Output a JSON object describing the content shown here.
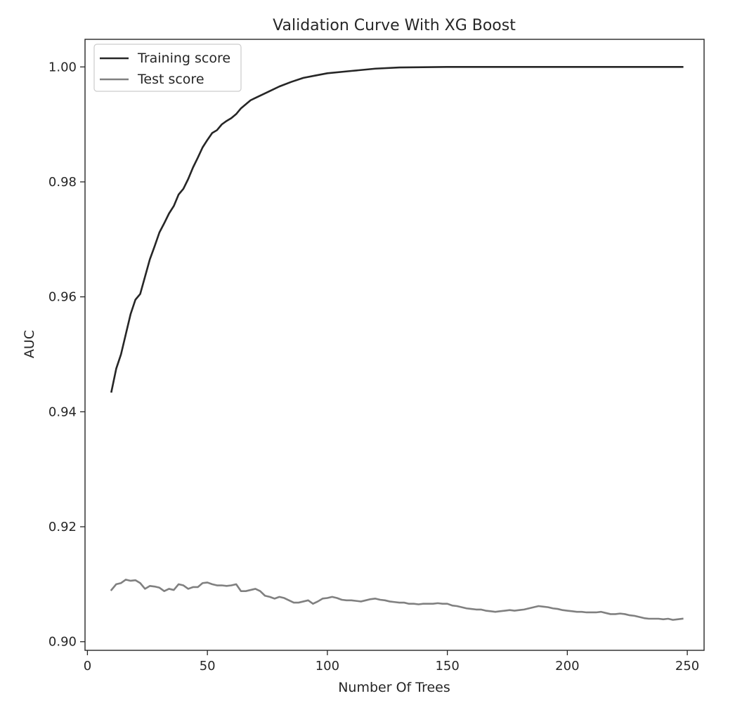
{
  "chart_data": {
    "type": "line",
    "title": "Validation Curve With XG Boost",
    "xlabel": "Number Of Trees",
    "ylabel": "AUC",
    "xlim": [
      -1,
      257
    ],
    "ylim": [
      0.8985,
      1.0048
    ],
    "xticks": [
      0,
      50,
      100,
      150,
      200,
      250
    ],
    "xtick_labels": [
      "0",
      "50",
      "100",
      "150",
      "200",
      "250"
    ],
    "yticks": [
      0.9,
      0.92,
      0.94,
      0.96,
      0.98,
      1.0
    ],
    "ytick_labels": [
      "0.90",
      "0.92",
      "0.94",
      "0.96",
      "0.98",
      "1.00"
    ],
    "grid": false,
    "legend_position": "top-left",
    "series": [
      {
        "name": "Training score",
        "color": "#262626",
        "x": [
          10,
          12,
          14,
          16,
          18,
          20,
          22,
          24,
          26,
          28,
          30,
          32,
          34,
          36,
          38,
          40,
          42,
          44,
          46,
          48,
          50,
          52,
          54,
          56,
          58,
          60,
          62,
          64,
          66,
          68,
          70,
          75,
          80,
          85,
          90,
          95,
          100,
          110,
          120,
          130,
          150,
          200,
          248
        ],
        "y": [
          0.9435,
          0.9475,
          0.95,
          0.9535,
          0.957,
          0.9595,
          0.9605,
          0.9635,
          0.9665,
          0.9688,
          0.9712,
          0.9728,
          0.9745,
          0.9758,
          0.9778,
          0.9788,
          0.9805,
          0.9825,
          0.9842,
          0.986,
          0.9873,
          0.9885,
          0.989,
          0.99,
          0.9906,
          0.9911,
          0.9918,
          0.9928,
          0.9935,
          0.9942,
          0.9946,
          0.9956,
          0.9966,
          0.9974,
          0.9981,
          0.9985,
          0.9989,
          0.9993,
          0.9997,
          0.9999,
          1.0,
          1.0,
          1.0
        ]
      },
      {
        "name": "Test score",
        "color": "#808080",
        "x": [
          10,
          12,
          14,
          16,
          18,
          20,
          22,
          24,
          26,
          28,
          30,
          32,
          34,
          36,
          38,
          40,
          42,
          44,
          46,
          48,
          50,
          52,
          54,
          56,
          58,
          60,
          62,
          64,
          66,
          68,
          70,
          72,
          74,
          76,
          78,
          80,
          82,
          84,
          86,
          88,
          90,
          92,
          94,
          96,
          98,
          100,
          102,
          104,
          106,
          108,
          110,
          112,
          114,
          116,
          118,
          120,
          122,
          124,
          126,
          128,
          130,
          132,
          134,
          136,
          138,
          140,
          142,
          144,
          146,
          148,
          150,
          152,
          154,
          156,
          158,
          160,
          162,
          164,
          166,
          168,
          170,
          172,
          174,
          176,
          178,
          180,
          182,
          184,
          186,
          188,
          190,
          192,
          194,
          196,
          198,
          200,
          202,
          204,
          206,
          208,
          210,
          212,
          214,
          216,
          218,
          220,
          222,
          224,
          226,
          228,
          230,
          232,
          234,
          236,
          238,
          240,
          242,
          244,
          246,
          248
        ],
        "y": [
          0.909,
          0.91,
          0.9102,
          0.9108,
          0.9106,
          0.9107,
          0.9102,
          0.9092,
          0.9097,
          0.9096,
          0.9094,
          0.9088,
          0.9092,
          0.909,
          0.91,
          0.9098,
          0.9092,
          0.9095,
          0.9095,
          0.9102,
          0.9103,
          0.91,
          0.9098,
          0.9098,
          0.9097,
          0.9098,
          0.91,
          0.9088,
          0.9088,
          0.909,
          0.9092,
          0.9088,
          0.908,
          0.9078,
          0.9075,
          0.9078,
          0.9076,
          0.9072,
          0.9068,
          0.9068,
          0.907,
          0.9072,
          0.9066,
          0.907,
          0.9075,
          0.9076,
          0.9078,
          0.9076,
          0.9073,
          0.9072,
          0.9072,
          0.9071,
          0.907,
          0.9072,
          0.9074,
          0.9075,
          0.9073,
          0.9072,
          0.907,
          0.9069,
          0.9068,
          0.9068,
          0.9066,
          0.9066,
          0.9065,
          0.9066,
          0.9066,
          0.9066,
          0.9067,
          0.9066,
          0.9066,
          0.9063,
          0.9062,
          0.906,
          0.9058,
          0.9057,
          0.9056,
          0.9056,
          0.9054,
          0.9053,
          0.9052,
          0.9053,
          0.9054,
          0.9055,
          0.9054,
          0.9055,
          0.9056,
          0.9058,
          0.906,
          0.9062,
          0.9061,
          0.906,
          0.9058,
          0.9057,
          0.9055,
          0.9054,
          0.9053,
          0.9052,
          0.9052,
          0.9051,
          0.9051,
          0.9051,
          0.9052,
          0.905,
          0.9048,
          0.9048,
          0.9049,
          0.9048,
          0.9046,
          0.9045,
          0.9043,
          0.9041,
          0.904,
          0.904,
          0.904,
          0.9039,
          0.904,
          0.9038,
          0.9039,
          0.904
        ]
      }
    ]
  }
}
